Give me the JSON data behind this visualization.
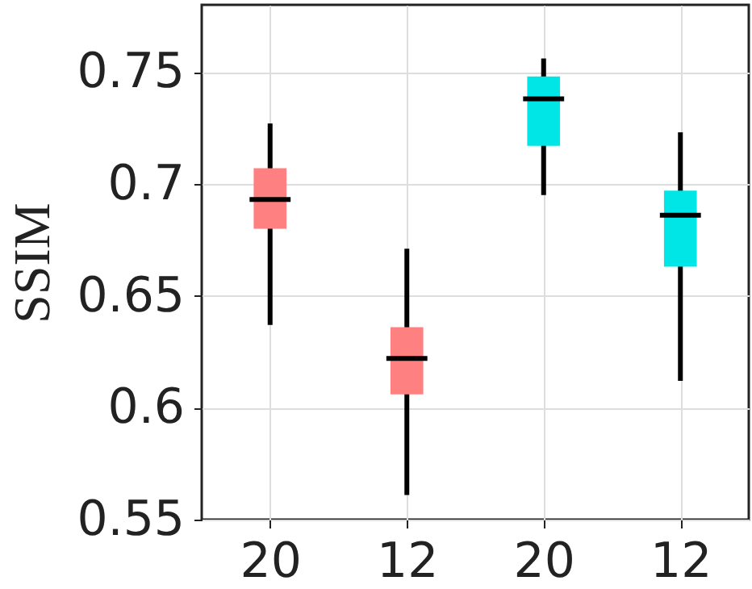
{
  "chart_data": {
    "type": "box",
    "ylabel": "SSIM",
    "categories": [
      "20",
      "12",
      "20",
      "12"
    ],
    "boxes": [
      {
        "low": 0.637,
        "q1": 0.68,
        "median": 0.693,
        "q3": 0.707,
        "high": 0.727
      },
      {
        "low": 0.561,
        "q1": 0.606,
        "median": 0.622,
        "q3": 0.636,
        "high": 0.671
      },
      {
        "low": 0.695,
        "q1": 0.717,
        "median": 0.738,
        "q3": 0.748,
        "high": 0.756
      },
      {
        "low": 0.612,
        "q1": 0.663,
        "median": 0.686,
        "q3": 0.697,
        "high": 0.723
      }
    ],
    "colors": [
      "#ff8080",
      "#ff8080",
      "#00e5e5",
      "#00e5e5"
    ],
    "ylim": [
      0.55,
      0.78
    ],
    "yticks": [
      0.55,
      0.6,
      0.65,
      0.7,
      0.75
    ],
    "grid": true
  }
}
